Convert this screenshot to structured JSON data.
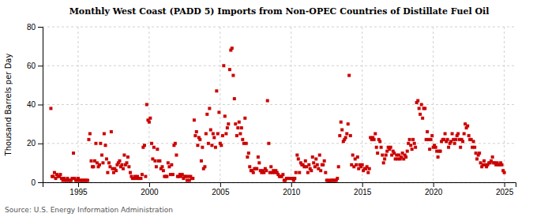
{
  "chart_data": {
    "type": "scatter",
    "title": "Monthly West Coast (PADD 5) Imports from Non-OPEC Countries of Distillate Fuel Oil",
    "ylabel": "Thousand Barrels per Day",
    "source": "Source: U.S. Energy Information Administration",
    "color": "#cc0000",
    "marker": "square",
    "grid": true,
    "xlim": [
      1992.5,
      2025.8
    ],
    "xticks": [
      1995,
      2000,
      2005,
      2010,
      2015,
      2020,
      2025
    ],
    "ylim": [
      0,
      80
    ],
    "yticks": [
      0,
      20,
      40,
      60,
      80
    ],
    "x": [
      1993.08,
      1993.17,
      1993.25,
      1993.33,
      1993.42,
      1993.5,
      1993.58,
      1993.67,
      1993.75,
      1993.83,
      1993.92,
      1994.0,
      1994.08,
      1994.17,
      1994.25,
      1994.33,
      1994.42,
      1994.5,
      1994.58,
      1994.67,
      1994.75,
      1994.83,
      1994.92,
      1995.0,
      1995.08,
      1995.17,
      1995.25,
      1995.33,
      1995.42,
      1995.5,
      1995.58,
      1995.67,
      1995.75,
      1995.83,
      1995.92,
      1996.0,
      1996.08,
      1996.17,
      1996.25,
      1996.33,
      1996.42,
      1996.5,
      1996.58,
      1996.67,
      1996.75,
      1996.83,
      1996.92,
      1997.0,
      1997.08,
      1997.17,
      1997.25,
      1997.33,
      1997.42,
      1997.5,
      1997.58,
      1997.67,
      1997.75,
      1997.83,
      1997.92,
      1998.0,
      1998.08,
      1998.17,
      1998.25,
      1998.33,
      1998.42,
      1998.5,
      1998.58,
      1998.67,
      1998.75,
      1998.83,
      1998.92,
      1999.0,
      1999.08,
      1999.17,
      1999.25,
      1999.33,
      1999.42,
      1999.5,
      1999.58,
      1999.67,
      1999.75,
      1999.83,
      1999.92,
      2000.0,
      2000.08,
      2000.17,
      2000.25,
      2000.33,
      2000.42,
      2000.5,
      2000.58,
      2000.67,
      2000.75,
      2000.83,
      2000.92,
      2001.0,
      2001.08,
      2001.17,
      2001.25,
      2001.33,
      2001.42,
      2001.5,
      2001.58,
      2001.67,
      2001.75,
      2001.83,
      2001.92,
      2002.0,
      2002.08,
      2002.17,
      2002.25,
      2002.33,
      2002.42,
      2002.5,
      2002.58,
      2002.67,
      2002.75,
      2002.83,
      2002.92,
      2003.0,
      2003.08,
      2003.17,
      2003.25,
      2003.33,
      2003.42,
      2003.5,
      2003.58,
      2003.67,
      2003.75,
      2003.83,
      2003.92,
      2004.0,
      2004.08,
      2004.17,
      2004.25,
      2004.33,
      2004.42,
      2004.5,
      2004.58,
      2004.67,
      2004.75,
      2004.83,
      2004.92,
      2005.0,
      2005.08,
      2005.17,
      2005.25,
      2005.33,
      2005.42,
      2005.5,
      2005.58,
      2005.67,
      2005.75,
      2005.83,
      2005.92,
      2006.0,
      2006.08,
      2006.17,
      2006.25,
      2006.33,
      2006.42,
      2006.5,
      2006.58,
      2006.67,
      2006.75,
      2006.83,
      2006.92,
      2007.0,
      2007.08,
      2007.17,
      2007.25,
      2007.33,
      2007.42,
      2007.5,
      2007.58,
      2007.67,
      2007.75,
      2007.83,
      2007.92,
      2008.0,
      2008.08,
      2008.17,
      2008.25,
      2008.33,
      2008.42,
      2008.5,
      2008.58,
      2008.67,
      2008.75,
      2008.83,
      2008.92,
      2009.0,
      2009.08,
      2009.17,
      2009.25,
      2009.33,
      2009.42,
      2009.5,
      2009.58,
      2009.67,
      2009.75,
      2009.83,
      2009.92,
      2010.0,
      2010.08,
      2010.17,
      2010.25,
      2010.33,
      2010.42,
      2010.5,
      2010.58,
      2010.67,
      2010.75,
      2010.83,
      2010.92,
      2011.0,
      2011.08,
      2011.17,
      2011.25,
      2011.33,
      2011.42,
      2011.5,
      2011.58,
      2011.67,
      2011.75,
      2011.83,
      2011.92,
      2012.0,
      2012.08,
      2012.17,
      2012.25,
      2012.33,
      2012.42,
      2012.5,
      2012.58,
      2012.67,
      2012.75,
      2012.83,
      2012.92,
      2013.0,
      2013.08,
      2013.17,
      2013.25,
      2013.33,
      2013.42,
      2013.5,
      2013.58,
      2013.67,
      2013.75,
      2013.83,
      2013.92,
      2014.0,
      2014.08,
      2014.17,
      2014.25,
      2014.33,
      2014.42,
      2014.5,
      2014.58,
      2014.67,
      2014.75,
      2014.83,
      2014.92,
      2015.0,
      2015.08,
      2015.17,
      2015.25,
      2015.33,
      2015.42,
      2015.5,
      2015.58,
      2015.67,
      2015.75,
      2015.83,
      2015.92,
      2016.0,
      2016.08,
      2016.17,
      2016.25,
      2016.33,
      2016.42,
      2016.5,
      2016.58,
      2016.67,
      2016.75,
      2016.83,
      2016.92,
      2017.0,
      2017.08,
      2017.17,
      2017.25,
      2017.33,
      2017.42,
      2017.5,
      2017.58,
      2017.67,
      2017.75,
      2017.83,
      2017.92,
      2018.0,
      2018.08,
      2018.17,
      2018.25,
      2018.33,
      2018.42,
      2018.5,
      2018.58,
      2018.67,
      2018.75,
      2018.83,
      2018.92,
      2019.0,
      2019.08,
      2019.17,
      2019.25,
      2019.33,
      2019.42,
      2019.5,
      2019.58,
      2019.67,
      2019.75,
      2019.83,
      2019.92,
      2020.0,
      2020.08,
      2020.17,
      2020.25,
      2020.33,
      2020.42,
      2020.5,
      2020.58,
      2020.67,
      2020.75,
      2020.83,
      2020.92,
      2021.0,
      2021.08,
      2021.17,
      2021.25,
      2021.33,
      2021.42,
      2021.5,
      2021.58,
      2021.67,
      2021.75,
      2021.83,
      2021.92,
      2022.0,
      2022.08,
      2022.17,
      2022.25,
      2022.33,
      2022.42,
      2022.5,
      2022.58,
      2022.67,
      2022.75,
      2022.83,
      2022.92,
      2023.0,
      2023.08,
      2023.17,
      2023.25,
      2023.33,
      2023.42,
      2023.5,
      2023.58,
      2023.67,
      2023.75,
      2023.83,
      2023.92,
      2024.0,
      2024.08,
      2024.17,
      2024.25,
      2024.33,
      2024.42,
      2024.5,
      2024.58,
      2024.67,
      2024.75,
      2024.83,
      2024.92,
      2025.0
    ],
    "values": [
      38,
      3,
      3,
      5,
      2,
      4,
      3,
      3,
      4,
      2,
      1,
      2,
      1,
      1,
      2,
      1,
      1,
      1,
      2,
      15,
      2,
      1,
      1,
      2,
      1,
      1,
      1,
      1,
      1,
      1,
      1,
      1,
      22,
      25,
      11,
      8,
      8,
      11,
      20,
      10,
      8,
      9,
      20,
      14,
      10,
      25,
      19,
      12,
      5,
      10,
      8,
      26,
      7,
      5,
      7,
      6,
      9,
      10,
      11,
      8,
      9,
      7,
      14,
      9,
      10,
      13,
      8,
      5,
      3,
      2,
      2,
      3,
      2,
      3,
      2,
      2,
      2,
      4,
      18,
      19,
      3,
      40,
      32,
      31,
      33,
      20,
      12,
      18,
      11,
      8,
      17,
      11,
      11,
      7,
      8,
      6,
      3,
      3,
      3,
      10,
      8,
      4,
      9,
      4,
      19,
      20,
      14,
      3,
      3,
      4,
      3,
      4,
      2,
      3,
      3,
      1,
      3,
      1,
      3,
      2,
      2,
      32,
      24,
      26,
      19,
      23,
      22,
      11,
      18,
      7,
      8,
      25,
      35,
      20,
      38,
      27,
      19,
      25,
      23,
      18,
      47,
      25,
      36,
      20,
      19,
      24,
      60,
      34,
      25,
      28,
      30,
      58,
      68,
      69,
      55,
      43,
      30,
      24,
      28,
      31,
      25,
      28,
      22,
      20,
      33,
      20,
      13,
      15,
      8,
      6,
      6,
      5,
      7,
      7,
      7,
      13,
      10,
      6,
      5,
      6,
      5,
      7,
      6,
      42,
      20,
      5,
      8,
      5,
      6,
      5,
      6,
      5,
      4,
      3,
      3,
      3,
      4,
      1,
      1,
      2,
      2,
      2,
      2,
      2,
      2,
      1,
      2,
      5,
      14,
      12,
      5,
      10,
      9,
      9,
      8,
      11,
      8,
      5,
      9,
      7,
      6,
      13,
      10,
      8,
      12,
      9,
      7,
      14,
      6,
      9,
      9,
      11,
      5,
      1,
      1,
      0,
      1,
      1,
      1,
      1,
      1,
      1,
      2,
      8,
      24,
      31,
      27,
      21,
      22,
      23,
      25,
      30,
      55,
      24,
      9,
      14,
      8,
      12,
      9,
      13,
      7,
      9,
      8,
      9,
      6,
      7,
      7,
      8,
      5,
      7,
      23,
      22,
      23,
      22,
      25,
      18,
      15,
      22,
      21,
      18,
      14,
      10,
      12,
      14,
      16,
      18,
      17,
      18,
      14,
      16,
      15,
      12,
      14,
      12,
      14,
      12,
      13,
      15,
      12,
      14,
      13,
      16,
      20,
      22,
      19,
      17,
      22,
      20,
      18,
      41,
      42,
      38,
      35,
      40,
      33,
      38,
      38,
      22,
      26,
      22,
      17,
      22,
      24,
      18,
      19,
      18,
      16,
      13,
      16,
      16,
      21,
      22,
      22,
      25,
      21,
      22,
      18,
      20,
      21,
      25,
      22,
      20,
      22,
      24,
      25,
      22,
      18,
      22,
      21,
      25,
      30,
      28,
      29,
      24,
      22,
      22,
      18,
      21,
      18,
      15,
      12,
      14,
      15,
      10,
      8,
      9,
      11,
      9,
      8,
      9,
      10,
      10,
      11,
      13,
      10,
      10,
      9,
      10,
      9,
      9,
      10,
      9,
      6,
      5
    ]
  }
}
